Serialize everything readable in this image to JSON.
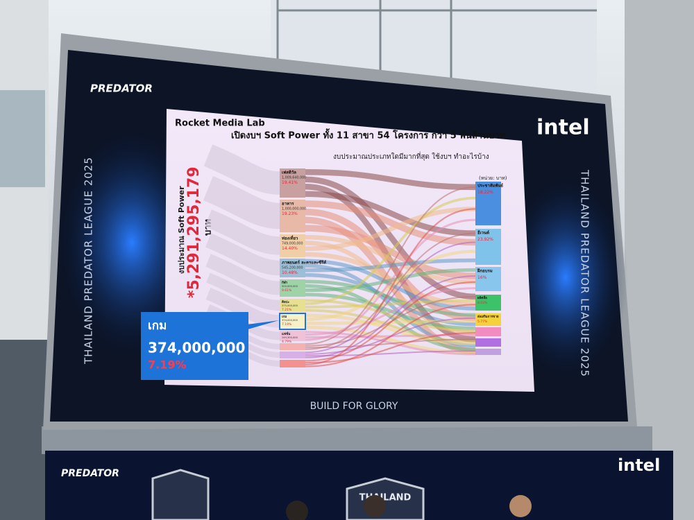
{
  "screen": {
    "brand_left": "PREDATOR",
    "brand_right": "intel",
    "side_left": "THAILAND PREDATOR LEAGUE 2025",
    "side_right": "THAILAND PREDATOR LEAGUE 2025",
    "tagline": "BUILD FOR GLORY"
  },
  "slide": {
    "source": "Rocket Media Lab",
    "title": "เปิดงบฯ Soft Power ทั้ง 11 สาขา 54 โครงการ กว่า 5 พันล้านบาท",
    "subtitle": "งบประมาณประเภทใดมีมากที่สุด ใช้งบฯ ทำอะไรบ้าง",
    "budget_label": "งบประมาณ Soft Power",
    "budget_total": "*5,291,295,179",
    "budget_unit": "บาท",
    "unit_note": "(หน่วย: บาท)",
    "left_nodes": [
      {
        "label": "เฟสติวัล",
        "amount": "1,009,640,000",
        "share": "19.41%"
      },
      {
        "label": "อาหาร",
        "amount": "1,000,000,000",
        "share": "19.23%"
      },
      {
        "label": "ท่องเที่ยว",
        "amount": "749,000,000",
        "share": "14.40%"
      },
      {
        "label": "ภาพยนตร์ ละครและซีรีส์",
        "amount": "545,200,000",
        "share": "10.48%"
      },
      {
        "label": "กีฬา",
        "amount": "500,000,000",
        "share": "9.61%"
      },
      {
        "label": "ศิลปะ",
        "amount": "375,000,000",
        "share": "7.21%"
      },
      {
        "label": "เกม",
        "amount": "374,000,000",
        "share": "7.19%"
      },
      {
        "label": "แฟชั่น",
        "amount": "249,300,000",
        "share": "4.79%"
      }
    ],
    "right_nodes": [
      {
        "label": "ประชาสัมพันธ์",
        "share": "18.22%"
      },
      {
        "label": "อีเวนต์",
        "share": "23.92%"
      },
      {
        "label": "ฝึกอบรม",
        "share": "16%"
      },
      {
        "label": "ผลิตสื่อ",
        "share": "8.03%"
      },
      {
        "label": "ส่งเสริมการขาย",
        "share": "5.77%"
      }
    ],
    "callout": {
      "label": "เกม",
      "amount": "374,000,000",
      "share": "7.19%"
    }
  },
  "banner": {
    "brand_left": "PREDATOR",
    "brand_right": "intel",
    "badge": "THAILAND"
  }
}
